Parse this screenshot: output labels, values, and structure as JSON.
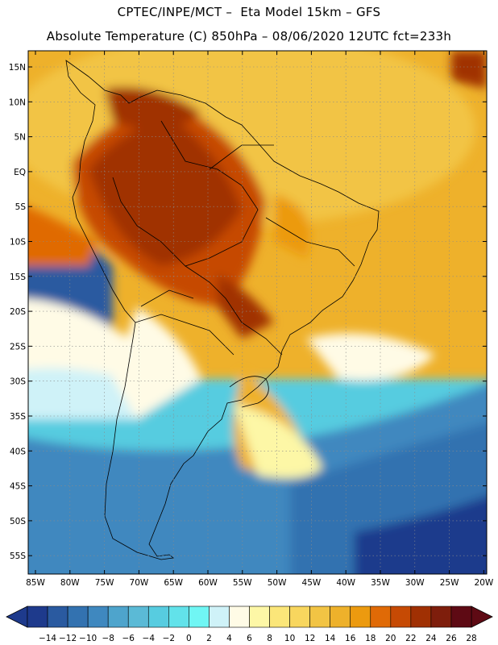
{
  "header": {
    "line1": "CPTEC/INPE/MCT –  Eta Model 15km – GFS",
    "line2": "Absolute Temperature (C) 850hPa – 08/06/2020 12UTC fct=233h"
  },
  "map": {
    "lat_labels": [
      "15N",
      "10N",
      "5N",
      "EQ",
      "5S",
      "10S",
      "15S",
      "20S",
      "25S",
      "30S",
      "35S",
      "40S",
      "45S",
      "50S",
      "55S"
    ],
    "lon_labels": [
      "85W",
      "80W",
      "75W",
      "70W",
      "65W",
      "60W",
      "55W",
      "50W",
      "45W",
      "40W",
      "35W",
      "30W",
      "25W",
      "20W"
    ]
  },
  "colorbar": {
    "ticks": [
      "-14",
      "-12",
      "-10",
      "-8",
      "-6",
      "-4",
      "-2",
      "0",
      "2",
      "4",
      "6",
      "8",
      "10",
      "12",
      "14",
      "16",
      "18",
      "20",
      "22",
      "24",
      "26",
      "28"
    ],
    "colors": [
      "#1e3a8c",
      "#2a5aa0",
      "#3372b0",
      "#3f88bf",
      "#4ea4cc",
      "#5bbad6",
      "#57cce0",
      "#62e2ea",
      "#70f6f4",
      "#cff2f8",
      "#fffbe6",
      "#fdf7a6",
      "#fbe679",
      "#f8d65e",
      "#f2c444",
      "#eeb12b",
      "#ec9a0f",
      "#e06a06",
      "#c64a04",
      "#a03003",
      "#7e1e0c",
      "#5e0a14"
    ]
  }
}
